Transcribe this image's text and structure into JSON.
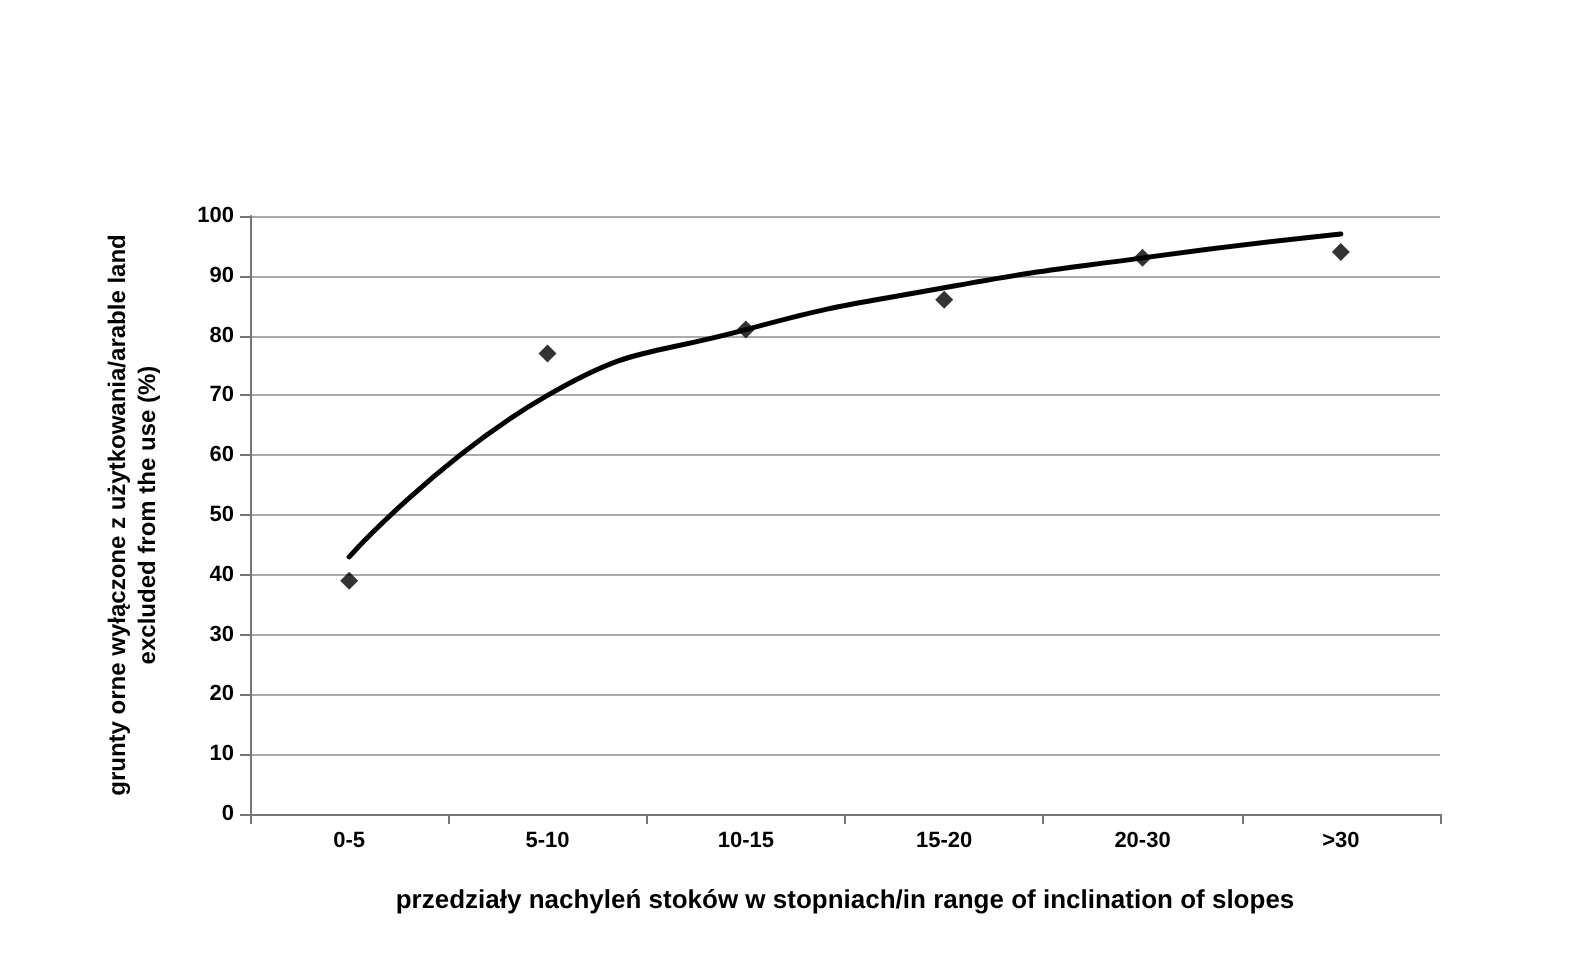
{
  "chart_data": {
    "type": "scatter",
    "xlabel": "przedziały nachyleń stoków w stopniach/in range of inclination of slopes",
    "ylabel": "grunty orne wyłączone z użytkowania/arable land\nexcluded from the use (%)",
    "categories": [
      "0-5",
      "5-10",
      "10-15",
      "15-20",
      "20-30",
      ">30"
    ],
    "series": [
      {
        "color": "#000000",
        "marker": "diamond",
        "values": [
          39,
          77,
          81,
          86,
          93,
          94
        ]
      },
      {
        "type": "line",
        "color": "#000000",
        "marker": "none",
        "line_style": "solid",
        "values": [
          43,
          70,
          81,
          88,
          93,
          97
        ]
      }
    ],
    "ylim": [
      0,
      100
    ],
    "yticks": [
      0,
      10,
      20,
      30,
      40,
      50,
      60,
      70,
      80,
      90,
      100
    ],
    "grid": "y"
  }
}
